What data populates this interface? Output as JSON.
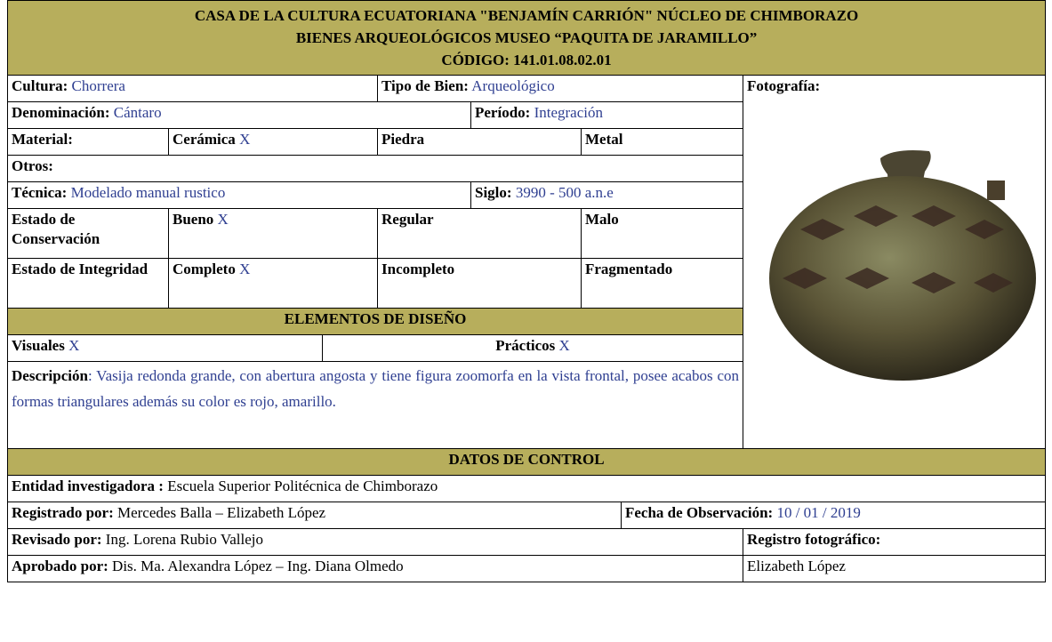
{
  "header": {
    "lines": [
      "CASA DE LA CULTURA ECUATORIANA \"BENJAMÍN CARRIÓN\" NÚCLEO DE CHIMBORAZO",
      "BIENES ARQUEOLÓGICOS MUSEO “PAQUITA DE JARAMILLO”",
      "CÓDIGO: 141.01.08.02.01"
    ]
  },
  "cultura": {
    "label": "Cultura:",
    "value": "Chorrera"
  },
  "tipo_de_bien": {
    "label": "Tipo de Bien:",
    "value": "Arqueológico"
  },
  "fotografia": {
    "label": "Fotografía:"
  },
  "denominacion": {
    "label": "Denominación:",
    "value": "Cántaro"
  },
  "periodo": {
    "label": "Período:",
    "value": "Integración"
  },
  "material": {
    "label": "Material:",
    "options": [
      {
        "label": "Cerámica",
        "mark": "X"
      },
      {
        "label": "Piedra"
      },
      {
        "label": "Metal"
      }
    ]
  },
  "otros": {
    "label": "Otros:"
  },
  "tecnica": {
    "label": "Técnica:",
    "value": "Modelado manual rustico"
  },
  "siglo": {
    "label": "Siglo:",
    "value": "3990 - 500 a.n.e"
  },
  "estado_conservacion": {
    "label": "Estado de Conservación",
    "options": [
      {
        "label": "Bueno",
        "mark": "X"
      },
      {
        "label": "Regular"
      },
      {
        "label": "Malo"
      }
    ]
  },
  "estado_integridad": {
    "label": "Estado de Integridad",
    "options": [
      {
        "label": "Completo",
        "mark": "X"
      },
      {
        "label": "Incompleto"
      },
      {
        "label": "Fragmentado"
      }
    ]
  },
  "elementos_diseno": {
    "title": "ELEMENTOS DE DISEÑO",
    "visuales": {
      "label": "Visuales",
      "mark": "X"
    },
    "practicos": {
      "label": "Prácticos",
      "mark": "X"
    }
  },
  "descripcion": {
    "label": "Descripción",
    "value": ": Vasija redonda grande, con abertura angosta y tiene figura zoomorfa en la vista frontal, posee acabos con formas triangulares además su color es rojo, amarillo."
  },
  "datos_control": {
    "title": "DATOS DE CONTROL",
    "entidad": {
      "label": "Entidad investigadora :",
      "value": "Escuela Superior Politécnica de Chimborazo"
    },
    "registrado": {
      "label": "Registrado por:",
      "value": "Mercedes Balla – Elizabeth López"
    },
    "fecha": {
      "label": "Fecha de Observación:",
      "value": "10 / 01 / 2019"
    },
    "revisado": {
      "label": "Revisado por:",
      "value": "Ing. Lorena Rubio Vallejo"
    },
    "registro_fotografico": {
      "label": "Registro fotográfico:",
      "value": "Elizabeth López"
    },
    "aprobado": {
      "label": "Aprobado por:",
      "value": "Dis. Ma. Alexandra López – Ing. Diana Olmedo"
    }
  }
}
